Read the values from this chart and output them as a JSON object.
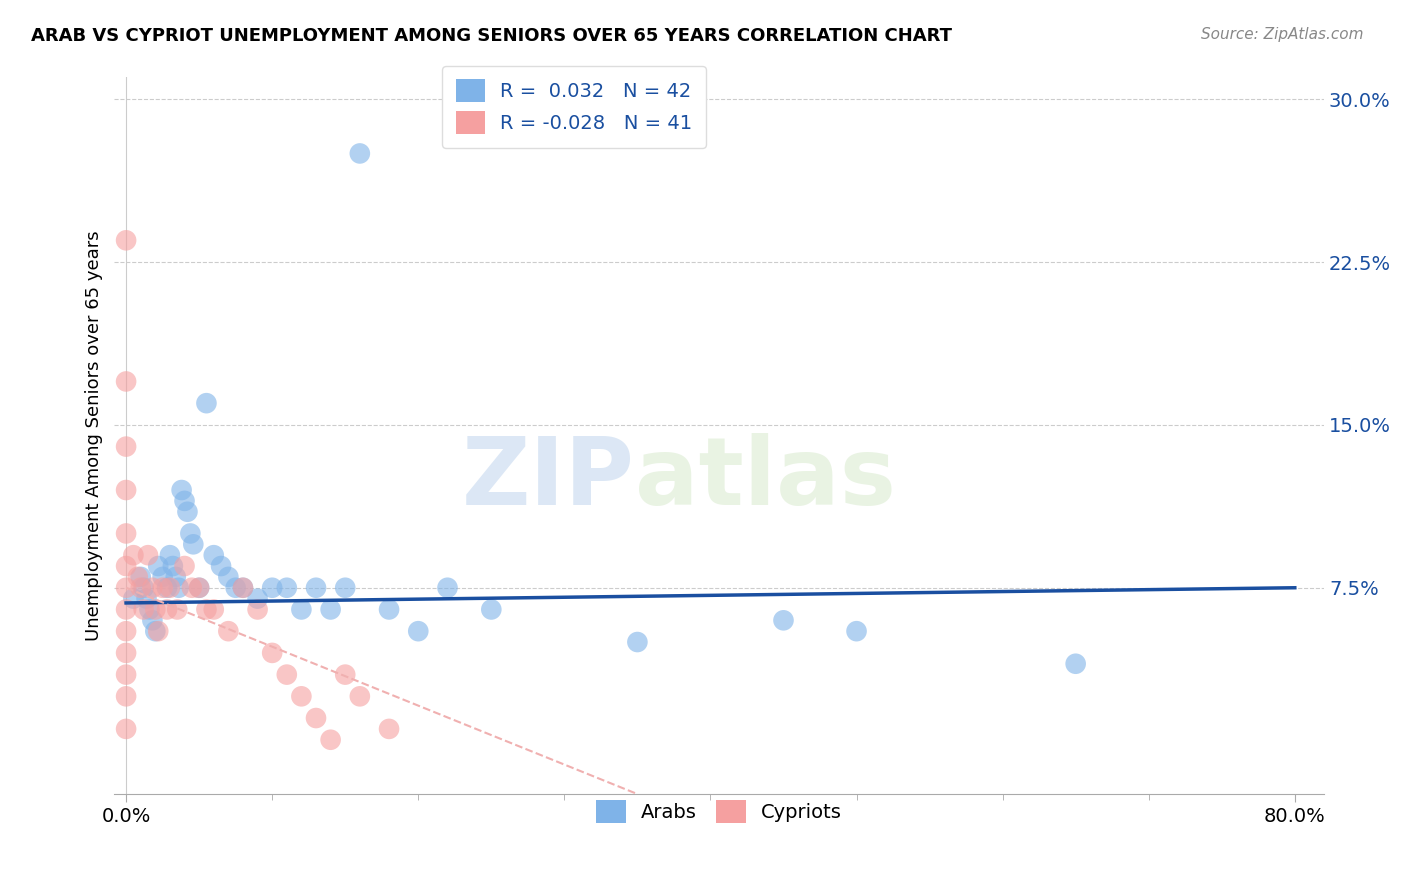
{
  "title": "ARAB VS CYPRIOT UNEMPLOYMENT AMONG SENIORS OVER 65 YEARS CORRELATION CHART",
  "source": "Source: ZipAtlas.com",
  "ylabel": "Unemployment Among Seniors over 65 years",
  "xlim": [
    0.0,
    0.8
  ],
  "ylim": [
    0.0,
    0.3
  ],
  "yticks": [
    0.075,
    0.15,
    0.225,
    0.3
  ],
  "ytick_labels": [
    "7.5%",
    "15.0%",
    "22.5%",
    "30.0%"
  ],
  "arab_R": "0.032",
  "arab_N": "42",
  "cypriot_R": "-0.028",
  "cypriot_N": "41",
  "arab_color": "#7fb3e8",
  "cypriot_color": "#f5a0a0",
  "arab_line_color": "#1a4fa0",
  "cypriot_line_color": "#f5a0a0",
  "watermark_zip": "ZIP",
  "watermark_atlas": "atlas",
  "arab_x": [
    0.005,
    0.01,
    0.012,
    0.014,
    0.016,
    0.018,
    0.02,
    0.022,
    0.025,
    0.028,
    0.03,
    0.032,
    0.034,
    0.036,
    0.038,
    0.04,
    0.042,
    0.044,
    0.046,
    0.05,
    0.055,
    0.06,
    0.065,
    0.07,
    0.075,
    0.08,
    0.09,
    0.1,
    0.11,
    0.12,
    0.13,
    0.14,
    0.15,
    0.16,
    0.18,
    0.2,
    0.22,
    0.25,
    0.35,
    0.45,
    0.5,
    0.65
  ],
  "arab_y": [
    0.07,
    0.08,
    0.075,
    0.07,
    0.065,
    0.06,
    0.055,
    0.085,
    0.08,
    0.075,
    0.09,
    0.085,
    0.08,
    0.075,
    0.12,
    0.115,
    0.11,
    0.1,
    0.095,
    0.075,
    0.16,
    0.09,
    0.085,
    0.08,
    0.075,
    0.075,
    0.07,
    0.075,
    0.075,
    0.065,
    0.075,
    0.065,
    0.075,
    0.275,
    0.065,
    0.055,
    0.075,
    0.065,
    0.05,
    0.06,
    0.055,
    0.04
  ],
  "cypriot_x": [
    0.0,
    0.0,
    0.0,
    0.0,
    0.0,
    0.0,
    0.0,
    0.0,
    0.0,
    0.0,
    0.0,
    0.0,
    0.0,
    0.005,
    0.008,
    0.01,
    0.012,
    0.015,
    0.018,
    0.02,
    0.022,
    0.025,
    0.028,
    0.03,
    0.035,
    0.04,
    0.045,
    0.05,
    0.055,
    0.06,
    0.07,
    0.08,
    0.09,
    0.1,
    0.11,
    0.12,
    0.13,
    0.14,
    0.15,
    0.16,
    0.18
  ],
  "cypriot_y": [
    0.235,
    0.17,
    0.14,
    0.12,
    0.1,
    0.085,
    0.075,
    0.065,
    0.055,
    0.045,
    0.035,
    0.025,
    0.01,
    0.09,
    0.08,
    0.075,
    0.065,
    0.09,
    0.075,
    0.065,
    0.055,
    0.075,
    0.065,
    0.075,
    0.065,
    0.085,
    0.075,
    0.075,
    0.065,
    0.065,
    0.055,
    0.075,
    0.065,
    0.045,
    0.035,
    0.025,
    0.015,
    0.005,
    0.035,
    0.025,
    0.01
  ]
}
